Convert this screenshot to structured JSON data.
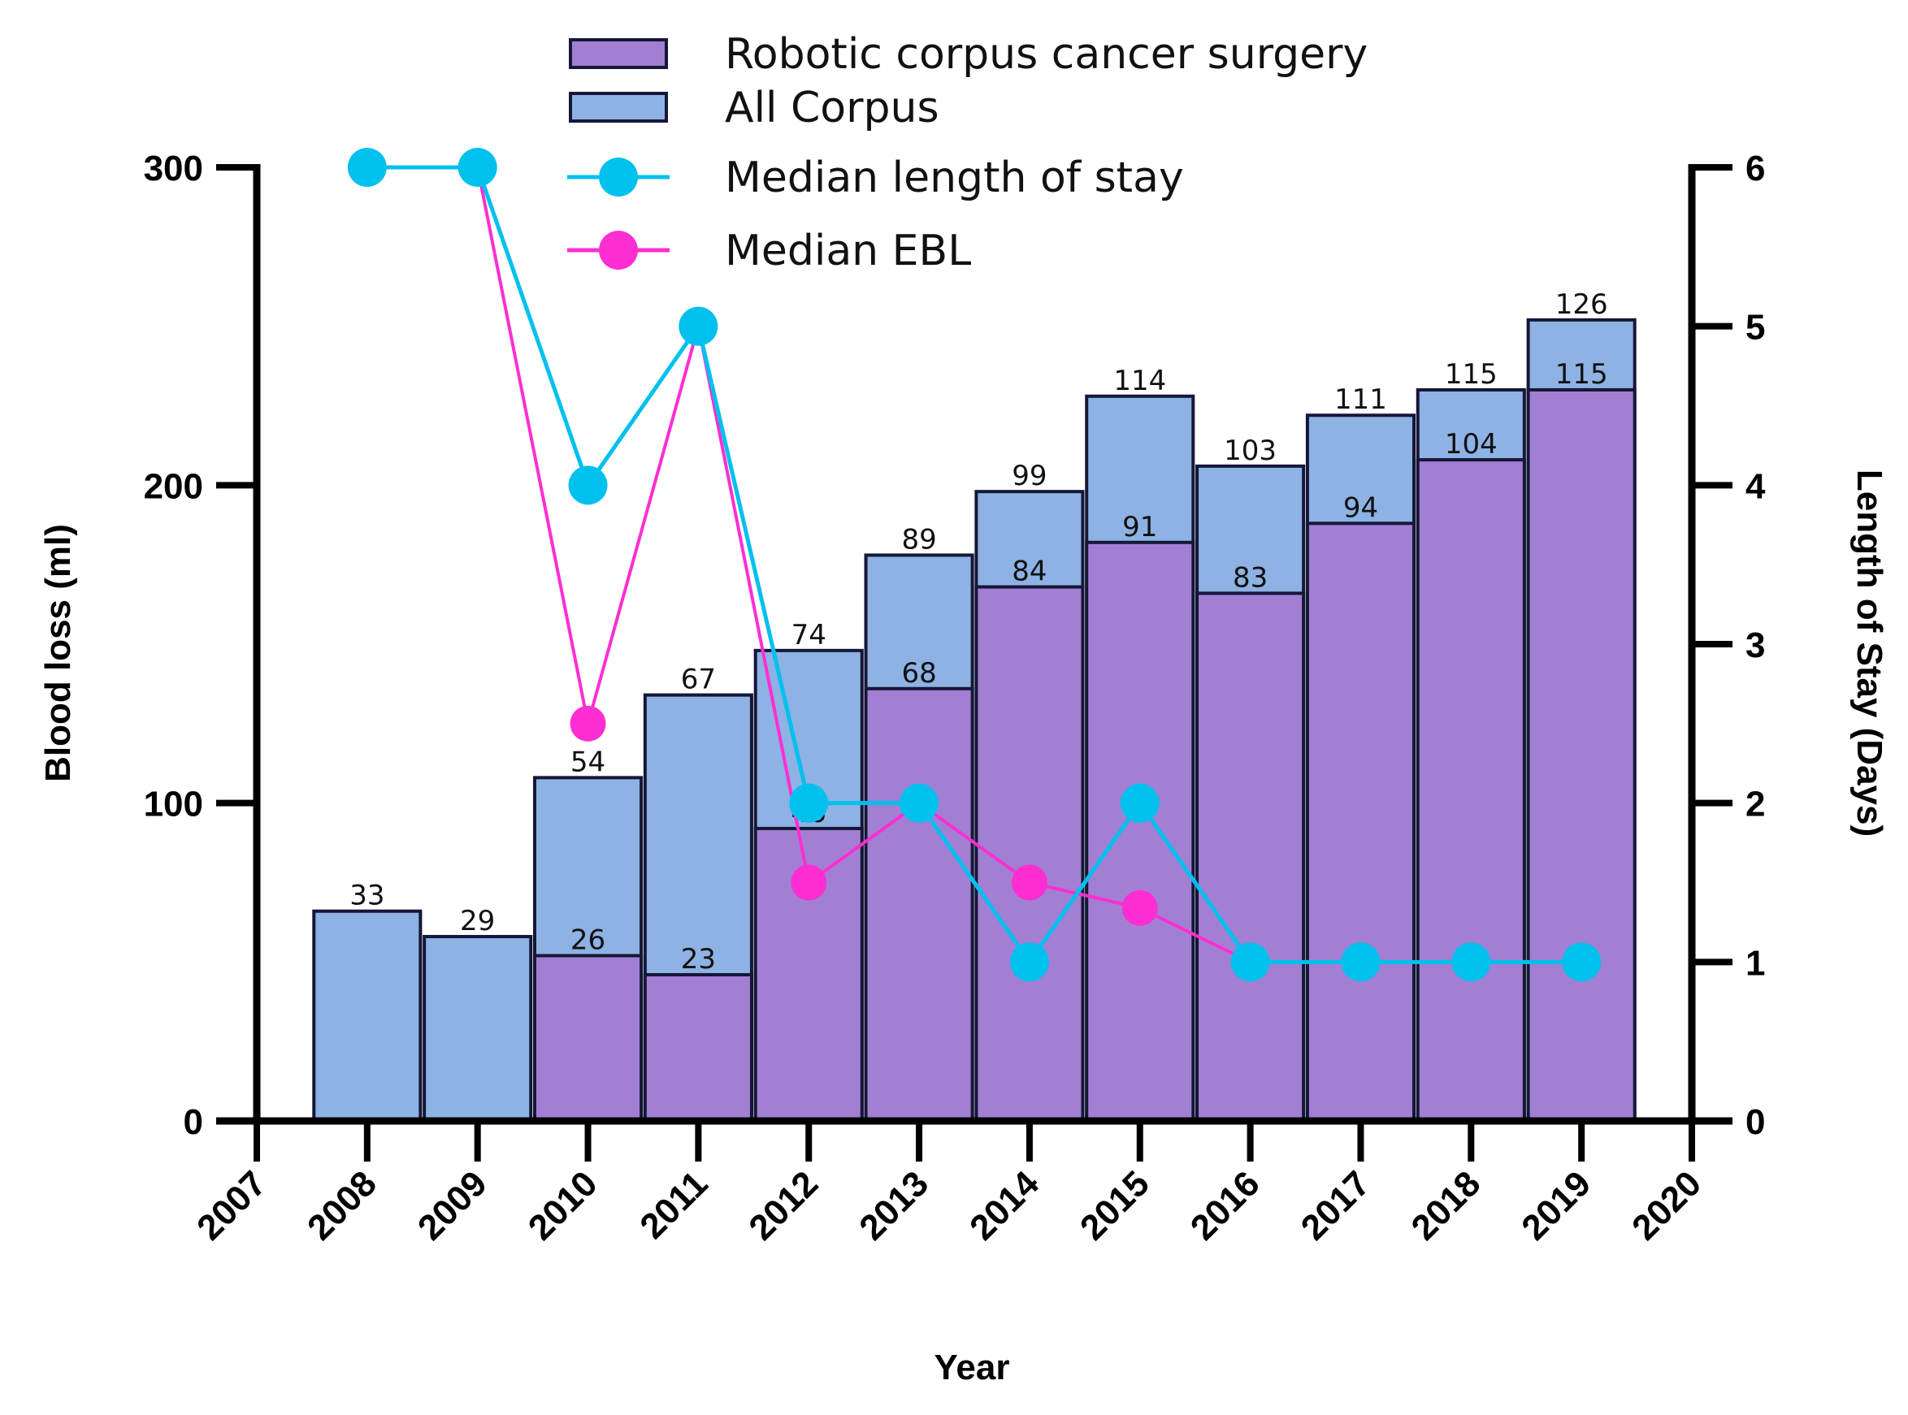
{
  "chart_data": {
    "type": "bar",
    "x": [
      2008,
      2009,
      2010,
      2011,
      2012,
      2013,
      2014,
      2015,
      2016,
      2017,
      2018,
      2019
    ],
    "xlabel": "Year",
    "xlim": [
      2007,
      2020
    ],
    "x_ticks": [
      2007,
      2008,
      2009,
      2010,
      2011,
      2012,
      2013,
      2014,
      2015,
      2016,
      2017,
      2018,
      2019,
      2020
    ],
    "ylabel": "Blood loss (ml)",
    "ylim": [
      0,
      300
    ],
    "y_ticks": [
      0,
      100,
      200,
      300
    ],
    "y2label": "Length of Stay (Days)",
    "y2lim": [
      0,
      6
    ],
    "y2_ticks": [
      0,
      1,
      2,
      3,
      4,
      5,
      6
    ],
    "bar_count_scale": 2,
    "grid": false,
    "legend_position": "top",
    "series": [
      {
        "name": "All Corpus",
        "kind": "bar",
        "color": "#8db2e3",
        "values": [
          33,
          29,
          54,
          67,
          74,
          89,
          99,
          114,
          103,
          111,
          115,
          126
        ]
      },
      {
        "name": "Robotic corpus cancer surgery",
        "kind": "bar",
        "color": "#a27fd3",
        "values": [
          null,
          null,
          26,
          23,
          46,
          68,
          84,
          91,
          83,
          94,
          104,
          115
        ]
      },
      {
        "name": "Median length of stay",
        "kind": "line",
        "axis": "right",
        "color": "#00c0ee",
        "values": [
          6,
          6,
          4,
          5,
          2,
          2,
          1,
          2,
          1,
          1,
          1,
          1
        ]
      },
      {
        "name": "Median EBL",
        "kind": "line",
        "axis": "left",
        "color": "#ff2ed2",
        "values": [
          300,
          300,
          125,
          250,
          75,
          100,
          75,
          67,
          50,
          50,
          50,
          50
        ],
        "markers": [
          false,
          false,
          true,
          false,
          true,
          false,
          true,
          true,
          false,
          false,
          false,
          false
        ]
      }
    ]
  }
}
